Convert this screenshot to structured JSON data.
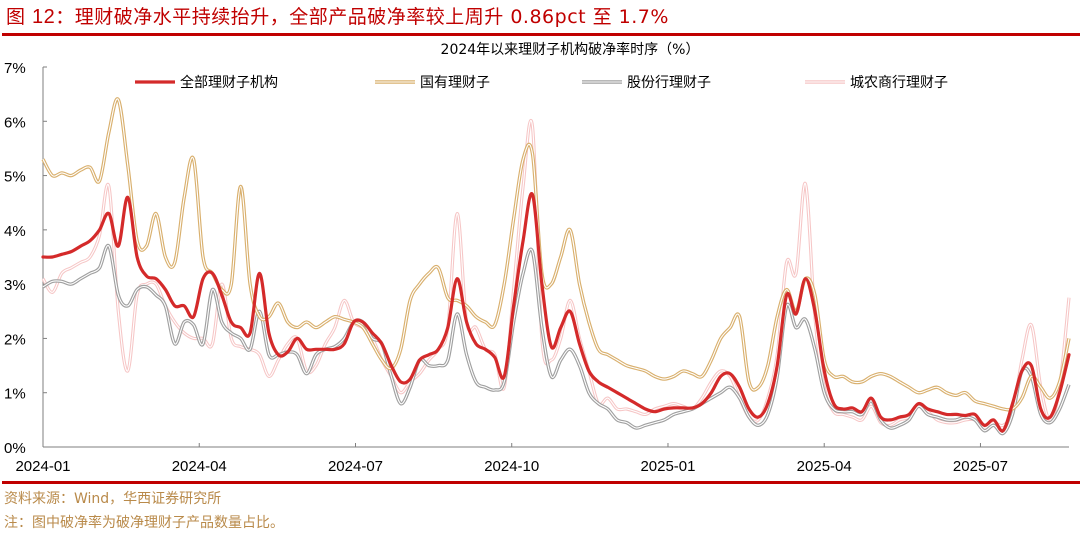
{
  "figure": {
    "title_prefix": "图 ",
    "title_number": "12",
    "title_text": "：理财破净水平持续抬升，全部产品破净率较上周升 0.86pct 至 1.7%",
    "accent_color": "#c00000"
  },
  "footer": {
    "source": "资料来源：Wind，华西证券研究所",
    "note": "注：图中破净率为破净理财子产品数量占比。",
    "text_color": "#b98a4a"
  },
  "chart_data": {
    "type": "line",
    "title": "2024年以来理财子机构破净率时序（%）",
    "xlabel": "",
    "ylabel": "",
    "ylim": [
      0,
      7
    ],
    "yticks": [
      "0%",
      "1%",
      "2%",
      "3%",
      "4%",
      "5%",
      "6%",
      "7%"
    ],
    "xticks": [
      "2024-01",
      "2024-04",
      "2024-07",
      "2024-10",
      "2025-01",
      "2025-04",
      "2025-07"
    ],
    "grid": false,
    "legend_position": "top",
    "x_start": "2024-01",
    "x_end": "2025-09",
    "sampling": "approx. weekly, values in %",
    "series": [
      {
        "name": "全部理财子机构",
        "color": "#d42a2a",
        "style": "thick-solid",
        "values": [
          3.5,
          3.5,
          3.55,
          3.6,
          3.7,
          3.8,
          4.0,
          4.3,
          3.7,
          4.6,
          3.5,
          3.15,
          3.1,
          2.9,
          2.6,
          2.6,
          2.4,
          3.1,
          3.2,
          2.8,
          2.3,
          2.2,
          2.1,
          3.2,
          2.1,
          1.7,
          1.75,
          2.0,
          1.8,
          1.8,
          1.8,
          1.8,
          1.9,
          2.3,
          2.3,
          2.1,
          1.9,
          1.5,
          1.2,
          1.25,
          1.6,
          1.7,
          1.8,
          2.2,
          3.1,
          2.3,
          1.9,
          1.8,
          1.65,
          1.3,
          2.6,
          3.8,
          4.65,
          3.0,
          1.85,
          2.2,
          2.5,
          1.9,
          1.4,
          1.2,
          1.1,
          1.0,
          0.9,
          0.8,
          0.7,
          0.65,
          0.7,
          0.72,
          0.72,
          0.72,
          0.8,
          1.0,
          1.3,
          1.35,
          1.1,
          0.7,
          0.55,
          0.8,
          1.5,
          2.8,
          2.45,
          3.1,
          2.5,
          1.4,
          0.8,
          0.7,
          0.72,
          0.65,
          0.9,
          0.55,
          0.5,
          0.55,
          0.6,
          0.8,
          0.7,
          0.65,
          0.6,
          0.6,
          0.58,
          0.6,
          0.4,
          0.5,
          0.3,
          0.8,
          1.4,
          1.5,
          0.7,
          0.55,
          1.0,
          1.7
        ]
      },
      {
        "name": "国有理财子",
        "color": "#d9b06e",
        "style": "double-outline",
        "values": [
          5.3,
          5.0,
          5.05,
          5.0,
          5.1,
          5.15,
          4.9,
          5.8,
          6.4,
          5.2,
          3.8,
          3.7,
          4.3,
          3.5,
          3.4,
          4.6,
          5.3,
          3.5,
          3.2,
          2.9,
          3.0,
          4.8,
          3.0,
          2.4,
          2.4,
          2.65,
          2.3,
          2.2,
          2.3,
          2.2,
          2.3,
          2.4,
          2.35,
          2.3,
          2.2,
          1.9,
          1.6,
          1.45,
          1.8,
          2.7,
          3.0,
          3.2,
          3.3,
          2.75,
          2.7,
          2.6,
          2.4,
          2.3,
          2.25,
          3.0,
          4.2,
          5.3,
          5.4,
          3.2,
          3.0,
          3.5,
          4.0,
          3.0,
          2.3,
          1.8,
          1.7,
          1.6,
          1.5,
          1.45,
          1.4,
          1.3,
          1.25,
          1.3,
          1.4,
          1.35,
          1.3,
          1.6,
          2.0,
          2.2,
          2.4,
          1.2,
          1.1,
          1.5,
          2.4,
          2.9,
          2.5,
          3.1,
          2.8,
          1.6,
          1.3,
          1.3,
          1.2,
          1.2,
          1.3,
          1.35,
          1.3,
          1.2,
          1.1,
          1.0,
          1.05,
          1.1,
          1.0,
          0.95,
          1.0,
          0.85,
          0.8,
          0.75,
          0.7,
          0.7,
          0.9,
          1.3,
          1.1,
          0.9,
          1.2,
          2.0
        ]
      },
      {
        "name": "股份行理财子",
        "color": "#a0a0a0",
        "style": "double-outline",
        "values": [
          2.95,
          3.05,
          3.05,
          3.0,
          3.1,
          3.2,
          3.3,
          3.7,
          2.8,
          2.6,
          2.9,
          2.95,
          2.8,
          2.6,
          1.9,
          2.3,
          2.25,
          1.9,
          2.9,
          2.3,
          2.1,
          2.0,
          1.8,
          2.5,
          1.7,
          1.7,
          1.75,
          1.7,
          1.35,
          1.7,
          1.8,
          1.85,
          2.0,
          2.3,
          2.3,
          2.0,
          1.9,
          1.3,
          0.8,
          1.1,
          1.6,
          1.5,
          1.5,
          1.6,
          2.45,
          1.7,
          1.2,
          1.1,
          1.05,
          1.2,
          2.3,
          3.2,
          3.6,
          2.2,
          1.3,
          1.6,
          1.8,
          1.5,
          1.0,
          0.8,
          0.7,
          0.5,
          0.45,
          0.35,
          0.4,
          0.45,
          0.5,
          0.6,
          0.65,
          0.7,
          0.8,
          0.9,
          1.0,
          1.1,
          0.9,
          0.55,
          0.4,
          0.6,
          1.3,
          2.6,
          2.2,
          2.35,
          1.8,
          1.0,
          0.7,
          0.65,
          0.65,
          0.6,
          0.85,
          0.5,
          0.35,
          0.4,
          0.5,
          0.75,
          0.6,
          0.55,
          0.5,
          0.5,
          0.55,
          0.5,
          0.3,
          0.4,
          0.25,
          0.6,
          1.4,
          1.3,
          0.6,
          0.45,
          0.7,
          1.15
        ]
      },
      {
        "name": "城农商行理财子",
        "color": "#f6c6c6",
        "style": "double-outline-light",
        "values": [
          3.1,
          2.85,
          3.2,
          3.3,
          3.4,
          3.5,
          3.9,
          4.8,
          2.5,
          1.4,
          2.8,
          3.0,
          3.0,
          2.6,
          2.3,
          2.1,
          2.0,
          2.0,
          1.9,
          3.0,
          2.0,
          1.85,
          1.8,
          1.7,
          1.3,
          1.6,
          1.9,
          2.0,
          1.4,
          1.5,
          1.9,
          2.2,
          2.7,
          2.3,
          2.2,
          2.0,
          1.6,
          1.3,
          1.0,
          1.2,
          1.35,
          1.6,
          1.8,
          2.2,
          4.3,
          2.3,
          2.2,
          1.8,
          1.7,
          1.1,
          2.9,
          4.8,
          5.9,
          2.0,
          1.6,
          2.0,
          2.7,
          2.0,
          1.4,
          0.8,
          0.9,
          0.7,
          0.7,
          0.65,
          0.6,
          0.7,
          0.75,
          0.8,
          0.75,
          0.7,
          0.9,
          1.2,
          1.4,
          1.3,
          0.9,
          0.55,
          0.5,
          0.9,
          1.7,
          3.4,
          3.2,
          4.85,
          2.4,
          1.1,
          0.65,
          0.6,
          0.55,
          0.5,
          0.75,
          0.45,
          0.4,
          0.5,
          0.55,
          0.75,
          0.65,
          0.5,
          0.45,
          0.45,
          0.5,
          0.5,
          0.35,
          0.45,
          0.4,
          0.65,
          1.6,
          2.25,
          1.1,
          0.5,
          1.1,
          2.75
        ]
      }
    ]
  }
}
